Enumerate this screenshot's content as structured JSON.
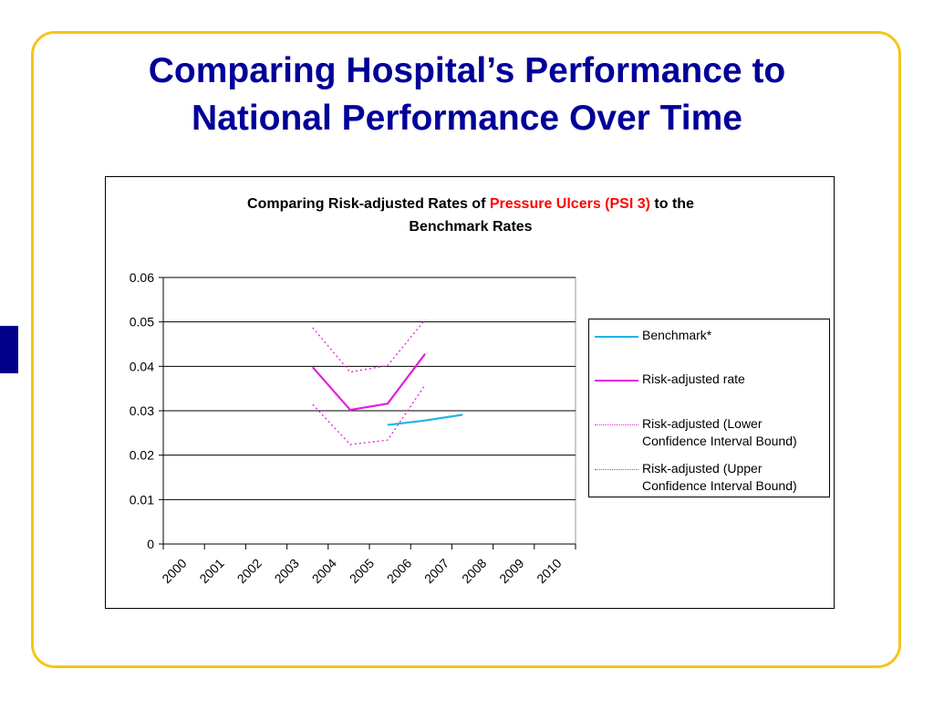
{
  "slide": {
    "title_line1": "Comparing Hospital’s Performance to",
    "title_line2": "National Performance Over Time",
    "border_color": "#f5c518",
    "title_color": "#000099"
  },
  "chart_data": {
    "type": "line",
    "title_part1": "Comparing Risk-adjusted Rates of ",
    "title_highlight": "Pressure Ulcers (PSI 3)",
    "title_part2": " to the",
    "title_line2": "Benchmark Rates",
    "xlabel": "",
    "ylabel": "",
    "x_categories": [
      "2000",
      "2001",
      "2002",
      "2003",
      "2004",
      "2005",
      "2006",
      "2007",
      "2008",
      "2009",
      "2010"
    ],
    "y_ticks": [
      "0",
      "0.01",
      "0.02",
      "0.03",
      "0.04",
      "0.05",
      "0.06"
    ],
    "ylim": [
      0,
      0.06
    ],
    "grid": true,
    "legend_position": "right",
    "series": [
      {
        "name": "Benchmark*",
        "color": "#1fb4e6",
        "style": "solid",
        "points": [
          [
            "2005",
            0.0268
          ],
          [
            "2006",
            0.0278
          ],
          [
            "2007",
            0.0291
          ]
        ]
      },
      {
        "name": "Risk-adjusted rate",
        "color": "#e020e0",
        "style": "solid",
        "points": [
          [
            "2003",
            0.0398
          ],
          [
            "2004",
            0.0302
          ],
          [
            "2005",
            0.0316
          ],
          [
            "2006",
            0.0428
          ]
        ]
      },
      {
        "name": "Risk-adjusted (Lower Confidence Interval Bound)",
        "color": "#e020e0",
        "style": "dotted",
        "points": [
          [
            "2003",
            0.0314
          ],
          [
            "2004",
            0.0224
          ],
          [
            "2005",
            0.0234
          ],
          [
            "2006",
            0.0358
          ]
        ]
      },
      {
        "name": "Risk-adjusted (Upper Confidence Interval Bound)",
        "color": "#e020e0",
        "style": "dotted",
        "points": [
          [
            "2003",
            0.0487
          ],
          [
            "2004",
            0.0387
          ],
          [
            "2005",
            0.0402
          ],
          [
            "2006",
            0.0505
          ]
        ]
      }
    ],
    "legend": {
      "item1_line1": "Benchmark*",
      "item2_line1": "Risk-adjusted rate",
      "item3_line1": "Risk-adjusted (Lower",
      "item3_line2": "Confidence Interval Bound)",
      "item4_line1": "Risk-adjusted (Upper",
      "item4_line2": "Confidence Interval Bound)"
    }
  }
}
